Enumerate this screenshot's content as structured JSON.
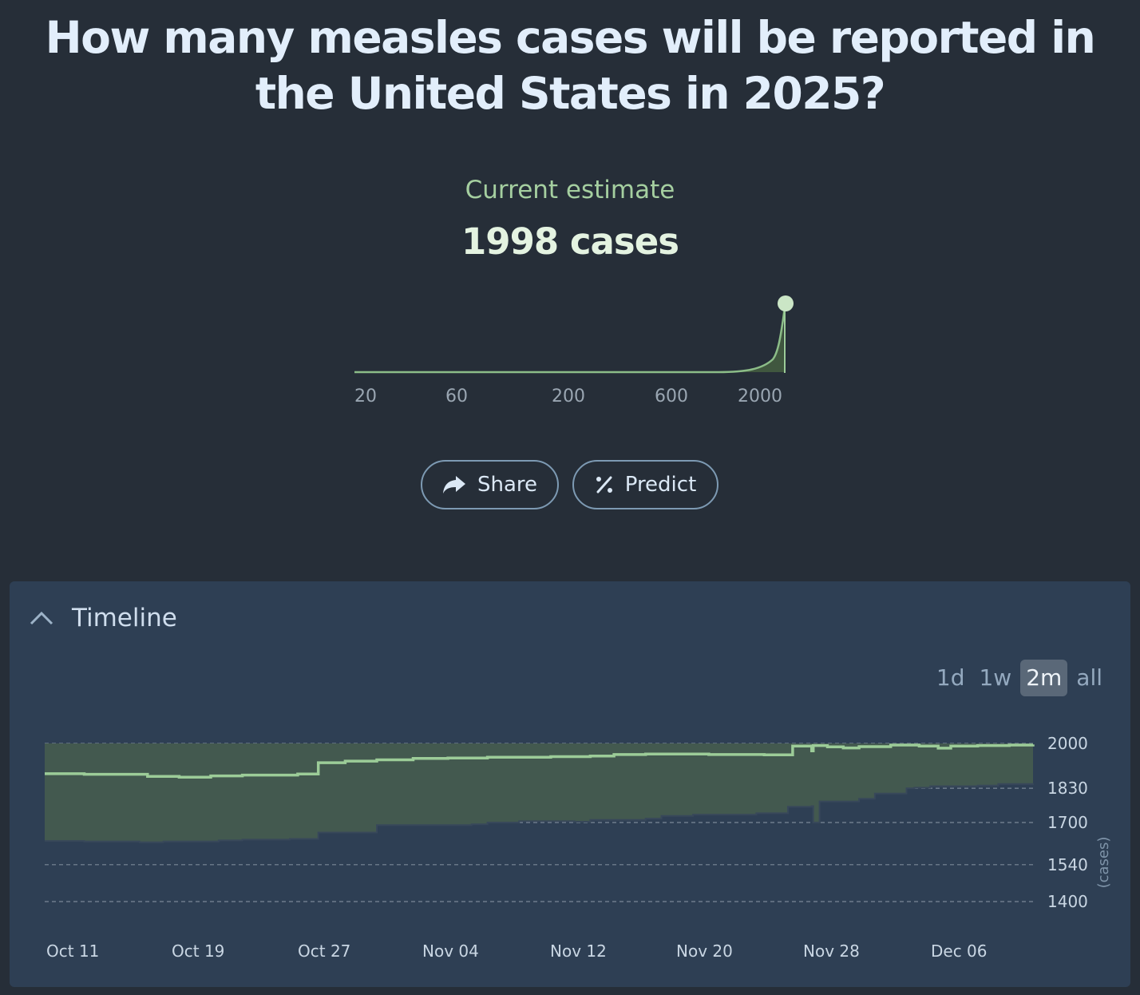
{
  "title": "How many measles cases will be reported in the United States in 2025?",
  "estimate": {
    "label": "Current estimate",
    "value": "1998 cases"
  },
  "distribution": {
    "axis_ticks": [
      "20",
      "60",
      "200",
      "600",
      "2000"
    ],
    "accent": "#9ccc98"
  },
  "actions": {
    "share_label": "Share",
    "predict_label": "Predict"
  },
  "timeline": {
    "title": "Timeline",
    "ranges": [
      "1d",
      "1w",
      "2m",
      "all"
    ],
    "active_range": "2m"
  },
  "chart_data": {
    "type": "line",
    "title": "Timeline",
    "ylabel": "(cases)",
    "x_tick_labels": [
      "Oct 11",
      "Oct 19",
      "Oct 27",
      "Nov 04",
      "Nov 12",
      "Nov 20",
      "Nov 28",
      "Dec 06"
    ],
    "y_ticks": [
      1400,
      1540,
      1700,
      1830,
      2000
    ],
    "y_tick_labels": [
      "1400",
      "1540",
      "1700",
      "1830",
      "2000"
    ],
    "ylim": [
      1400,
      2000
    ],
    "x_start_day": 0,
    "x_end_day": 62.5,
    "series": [
      {
        "name": "median",
        "points": [
          [
            0,
            1885
          ],
          [
            2.5,
            1883
          ],
          [
            6.5,
            1875
          ],
          [
            8.5,
            1872
          ],
          [
            10.5,
            1877
          ],
          [
            12.5,
            1880
          ],
          [
            16,
            1884
          ],
          [
            17.3,
            1927
          ],
          [
            19,
            1933
          ],
          [
            21,
            1938
          ],
          [
            23.3,
            1943
          ],
          [
            25.5,
            1945
          ],
          [
            28,
            1948
          ],
          [
            32,
            1950
          ],
          [
            34.5,
            1952
          ],
          [
            36,
            1958
          ],
          [
            38,
            1960
          ],
          [
            42,
            1958
          ],
          [
            45.5,
            1957
          ],
          [
            47.3,
            1990
          ],
          [
            48.5,
            1972
          ],
          [
            48.6,
            1992
          ],
          [
            49.5,
            1987
          ],
          [
            50.5,
            1983
          ],
          [
            51.5,
            1988
          ],
          [
            53.5,
            1994
          ],
          [
            55.3,
            1990
          ],
          [
            56.5,
            1982
          ],
          [
            57.3,
            1990
          ],
          [
            59,
            1992
          ],
          [
            61,
            1994
          ],
          [
            62.5,
            1996
          ]
        ]
      },
      {
        "name": "lower_bound",
        "points": [
          [
            0,
            1630
          ],
          [
            2.5,
            1628
          ],
          [
            6,
            1625
          ],
          [
            7.5,
            1628
          ],
          [
            11,
            1632
          ],
          [
            12.5,
            1635
          ],
          [
            15.5,
            1638
          ],
          [
            17.3,
            1662
          ],
          [
            21,
            1690
          ],
          [
            27,
            1693
          ],
          [
            28,
            1700
          ],
          [
            30,
            1705
          ],
          [
            33.5,
            1703
          ],
          [
            34.5,
            1710
          ],
          [
            38,
            1715
          ],
          [
            39,
            1725
          ],
          [
            41,
            1730
          ],
          [
            45,
            1735
          ],
          [
            47,
            1760
          ],
          [
            48.5,
            1762
          ],
          [
            48.6,
            1700
          ],
          [
            49,
            1780
          ],
          [
            51.5,
            1790
          ],
          [
            52.5,
            1810
          ],
          [
            54.5,
            1830
          ],
          [
            55,
            1832
          ],
          [
            56,
            1838
          ],
          [
            59,
            1840
          ],
          [
            60.3,
            1846
          ],
          [
            62.5,
            1848
          ]
        ]
      },
      {
        "name": "upper_bound",
        "points": [
          [
            0,
            2000
          ],
          [
            62.5,
            2000
          ]
        ]
      }
    ]
  }
}
